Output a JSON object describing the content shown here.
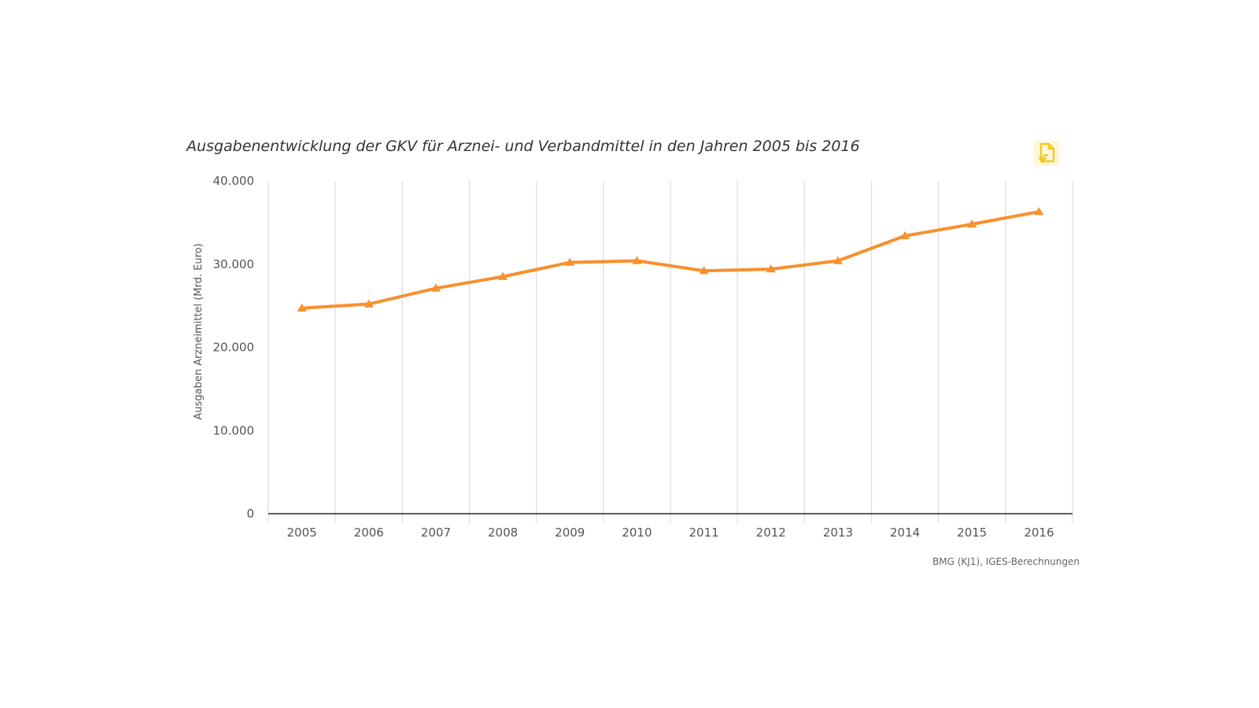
{
  "chart_data": {
    "type": "line",
    "title": "Ausgabenentwicklung der GKV für Arznei- und Verbandmittel in den Jahren 2005 bis 2016",
    "xlabel": "",
    "ylabel": "Ausgaben Arzneimittel (Mrd. Euro)",
    "categories": [
      "2005",
      "2006",
      "2007",
      "2008",
      "2009",
      "2010",
      "2011",
      "2012",
      "2013",
      "2014",
      "2015",
      "2016"
    ],
    "series": [
      {
        "name": "Ausgaben Arzneimittel",
        "values": [
          24700,
          25200,
          27100,
          28500,
          30200,
          30400,
          29200,
          29400,
          30400,
          33400,
          34800,
          36300
        ],
        "color": "#F7902E",
        "marker": "triangle"
      }
    ],
    "ylim": [
      0,
      40000
    ],
    "yticks": [
      0,
      10000,
      20000,
      30000,
      40000
    ],
    "ytick_labels": [
      "0",
      "10.000",
      "20.000",
      "30.000",
      "40.000"
    ],
    "grid": "vertical"
  },
  "source": "BMG (KJ1), IGES-Berechnungen",
  "export_icon": "export-document-icon",
  "colors": {
    "accent": "#F7902E",
    "icon": "#F5C518",
    "grid": "#DDDDDD",
    "baseline": "#000000"
  }
}
